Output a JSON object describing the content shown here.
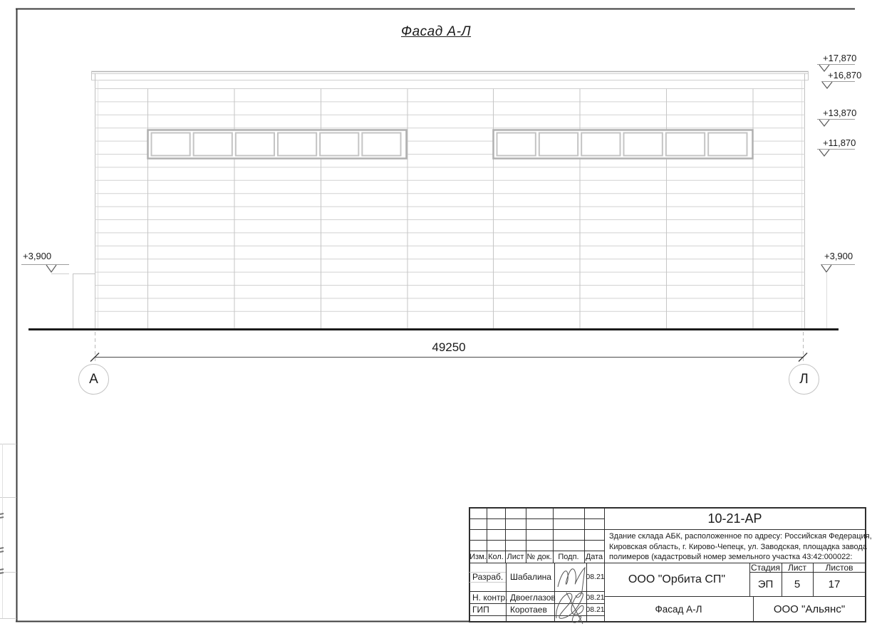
{
  "sheet": {
    "title": "Фасад А-Л"
  },
  "drawing": {
    "dimension_total": "49250",
    "axis_left_label": "А",
    "axis_right_label": "Л",
    "elevations_right": [
      "+17,870",
      "+16,870",
      "+13,870",
      "+11,870"
    ],
    "elevation_left_low": "+3,900",
    "elevation_right_low": "+3,900"
  },
  "title_block": {
    "code": "10-21-АР",
    "description_lines": [
      "Здание склада АБК, расположенное по адресу: Российская Федерация,",
      "Кировская область, г. Кирово-Чепецк, ул. Заводская, площадка завода",
      "полимеров (кадастровый номер земельного участка 43:42:000022:"
    ],
    "header_cells": [
      "Изм.",
      "Кол.",
      "Лист",
      "№ док.",
      "Подп.",
      "Дата"
    ],
    "people": [
      {
        "role": "Разраб.",
        "name": "Шабалина",
        "date": "08.21"
      },
      {
        "role": "Н. контр.",
        "name": "Двоеглазов",
        "date": "08.21"
      },
      {
        "role": "ГИП",
        "name": "Коротаев",
        "date": "08.21"
      }
    ],
    "stage_label": "Стадия",
    "sheet_label": "Лист",
    "sheets_label": "Листов",
    "stage_value": "ЭП",
    "sheet_value": "5",
    "sheets_value": "17",
    "org_top": "ООО \"Орбита СП\"",
    "subtitle": "Фасад А-Л",
    "org_bottom": "ООО \"Альянс\""
  },
  "colors": {
    "line_dark": "#333333",
    "line_light": "#cccccc",
    "ground": "#1b1b1b"
  }
}
